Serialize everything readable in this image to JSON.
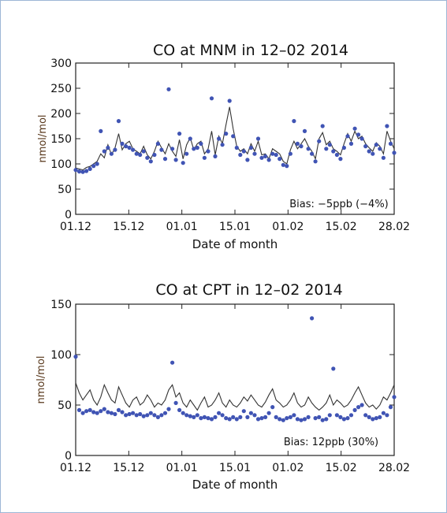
{
  "chart_data": [
    {
      "type": "line",
      "title": "CO at MNM in 12–02 2014",
      "xlabel": "Date of month",
      "ylabel": "nmol/mol",
      "x_ticks": [
        "01.12",
        "15.12",
        "01.01",
        "15.01",
        "01.02",
        "15.02",
        "28.02"
      ],
      "y_ticks": [
        "0",
        "50",
        "100",
        "150",
        "200",
        "250",
        "300"
      ],
      "xlim": [
        0,
        89
      ],
      "ylim": [
        0,
        300
      ],
      "annotation": "Bias: −5ppb (−4%)",
      "grid": false,
      "series": [
        {
          "style": "line",
          "color": "#333333",
          "x": [
            0,
            1,
            2,
            3,
            4,
            5,
            6,
            7,
            8,
            9,
            10,
            11,
            12,
            13,
            14,
            15,
            16,
            17,
            18,
            19,
            20,
            21,
            22,
            23,
            24,
            25,
            26,
            27,
            28,
            29,
            30,
            31,
            32,
            33,
            34,
            35,
            36,
            37,
            38,
            39,
            40,
            41,
            42,
            43,
            44,
            45,
            46,
            47,
            48,
            49,
            50,
            51,
            52,
            53,
            54,
            55,
            56,
            57,
            58,
            59,
            60,
            61,
            62,
            63,
            64,
            65,
            66,
            67,
            68,
            69,
            70,
            71,
            72,
            73,
            74,
            75,
            76,
            77,
            78,
            79,
            80,
            81,
            82,
            83,
            84,
            85,
            86,
            87,
            88,
            89
          ],
          "y": [
            92,
            90,
            88,
            93,
            95,
            100,
            105,
            120,
            112,
            138,
            118,
            132,
            160,
            128,
            140,
            145,
            130,
            125,
            120,
            135,
            118,
            110,
            125,
            145,
            132,
            120,
            140,
            125,
            115,
            148,
            110,
            138,
            152,
            128,
            140,
            145,
            120,
            130,
            165,
            118,
            155,
            140,
            178,
            213,
            170,
            135,
            125,
            130,
            120,
            140,
            125,
            145,
            118,
            120,
            110,
            130,
            125,
            120,
            105,
            100,
            128,
            145,
            130,
            140,
            150,
            135,
            125,
            110,
            150,
            162,
            138,
            145,
            130,
            125,
            118,
            140,
            160,
            145,
            165,
            150,
            155,
            140,
            132,
            125,
            142,
            135,
            120,
            165,
            145,
            130
          ]
        },
        {
          "style": "points",
          "color": "#4054b4",
          "x": [
            0,
            1,
            2,
            3,
            4,
            5,
            6,
            7,
            8,
            9,
            10,
            11,
            12,
            13,
            14,
            15,
            16,
            17,
            18,
            19,
            20,
            21,
            22,
            23,
            24,
            25,
            26,
            27,
            28,
            29,
            30,
            31,
            32,
            33,
            34,
            35,
            36,
            37,
            38,
            39,
            40,
            41,
            42,
            43,
            44,
            45,
            46,
            47,
            48,
            49,
            50,
            51,
            52,
            53,
            54,
            55,
            56,
            57,
            58,
            59,
            60,
            61,
            62,
            63,
            64,
            65,
            66,
            67,
            68,
            69,
            70,
            71,
            72,
            73,
            74,
            75,
            76,
            77,
            78,
            79,
            80,
            81,
            82,
            83,
            84,
            85,
            86,
            87,
            88,
            89
          ],
          "y": [
            88,
            85,
            84,
            86,
            90,
            96,
            100,
            165,
            125,
            132,
            120,
            128,
            185,
            140,
            135,
            132,
            128,
            120,
            118,
            125,
            112,
            105,
            118,
            140,
            128,
            110,
            248,
            130,
            108,
            160,
            102,
            120,
            150,
            130,
            132,
            140,
            112,
            125,
            230,
            115,
            150,
            138,
            160,
            225,
            155,
            132,
            118,
            125,
            108,
            132,
            120,
            150,
            112,
            115,
            108,
            120,
            118,
            110,
            98,
            96,
            120,
            185,
            140,
            135,
            165,
            130,
            120,
            105,
            145,
            175,
            130,
            138,
            125,
            118,
            110,
            132,
            155,
            140,
            170,
            158,
            150,
            135,
            125,
            120,
            138,
            130,
            112,
            175,
            140,
            122
          ]
        }
      ]
    },
    {
      "type": "line",
      "title": "CO at CPT in 12–02 2014",
      "xlabel": "Date of month",
      "ylabel": "nmol/mol",
      "x_ticks": [
        "01.12",
        "15.12",
        "01.01",
        "15.01",
        "01.02",
        "15.02",
        "28.02"
      ],
      "y_ticks": [
        "0",
        "50",
        "100",
        "150"
      ],
      "xlim": [
        0,
        89
      ],
      "ylim": [
        0,
        150
      ],
      "annotation": "Bias: 12ppb (30%)",
      "grid": false,
      "series": [
        {
          "style": "line",
          "color": "#333333",
          "x": [
            0,
            1,
            2,
            3,
            4,
            5,
            6,
            7,
            8,
            9,
            10,
            11,
            12,
            13,
            14,
            15,
            16,
            17,
            18,
            19,
            20,
            21,
            22,
            23,
            24,
            25,
            26,
            27,
            28,
            29,
            30,
            31,
            32,
            33,
            34,
            35,
            36,
            37,
            38,
            39,
            40,
            41,
            42,
            43,
            44,
            45,
            46,
            47,
            48,
            49,
            50,
            51,
            52,
            53,
            54,
            55,
            56,
            57,
            58,
            59,
            60,
            61,
            62,
            63,
            64,
            65,
            66,
            67,
            68,
            69,
            70,
            71,
            72,
            73,
            74,
            75,
            76,
            77,
            78,
            79,
            80,
            81,
            82,
            83,
            84,
            85,
            86,
            87,
            88,
            89
          ],
          "y": [
            72,
            62,
            55,
            60,
            65,
            55,
            50,
            58,
            70,
            62,
            55,
            52,
            68,
            60,
            52,
            48,
            55,
            58,
            50,
            53,
            60,
            55,
            48,
            52,
            50,
            55,
            65,
            70,
            58,
            62,
            52,
            48,
            55,
            50,
            45,
            52,
            58,
            48,
            50,
            55,
            62,
            52,
            48,
            55,
            50,
            48,
            52,
            58,
            54,
            60,
            55,
            50,
            48,
            53,
            60,
            66,
            55,
            52,
            48,
            50,
            55,
            62,
            52,
            48,
            50,
            58,
            52,
            48,
            45,
            48,
            52,
            60,
            50,
            55,
            52,
            48,
            50,
            55,
            62,
            68,
            60,
            52,
            48,
            50,
            46,
            50,
            58,
            55,
            62,
            70
          ]
        },
        {
          "style": "points",
          "color": "#4054b4",
          "x": [
            0,
            1,
            2,
            3,
            4,
            5,
            6,
            7,
            8,
            9,
            10,
            11,
            12,
            13,
            14,
            15,
            16,
            17,
            18,
            19,
            20,
            21,
            22,
            23,
            24,
            25,
            26,
            27,
            28,
            29,
            30,
            31,
            32,
            33,
            34,
            35,
            36,
            37,
            38,
            39,
            40,
            41,
            42,
            43,
            44,
            45,
            46,
            47,
            48,
            49,
            50,
            51,
            52,
            53,
            54,
            55,
            56,
            57,
            58,
            59,
            60,
            61,
            62,
            63,
            64,
            65,
            66,
            67,
            68,
            69,
            70,
            71,
            72,
            73,
            74,
            75,
            76,
            77,
            78,
            79,
            80,
            81,
            82,
            83,
            84,
            85,
            86,
            87,
            88,
            89
          ],
          "y": [
            98,
            45,
            42,
            44,
            45,
            43,
            42,
            44,
            46,
            43,
            42,
            41,
            45,
            43,
            40,
            41,
            42,
            40,
            41,
            39,
            40,
            42,
            40,
            38,
            40,
            42,
            46,
            92,
            52,
            45,
            42,
            40,
            39,
            38,
            40,
            37,
            38,
            37,
            36,
            38,
            42,
            40,
            37,
            36,
            38,
            36,
            38,
            44,
            38,
            42,
            40,
            36,
            37,
            38,
            42,
            48,
            38,
            36,
            35,
            37,
            38,
            40,
            36,
            35,
            36,
            38,
            136,
            37,
            38,
            35,
            36,
            40,
            86,
            40,
            38,
            36,
            37,
            40,
            45,
            48,
            50,
            40,
            38,
            36,
            37,
            38,
            42,
            40,
            48,
            58
          ]
        }
      ]
    }
  ]
}
